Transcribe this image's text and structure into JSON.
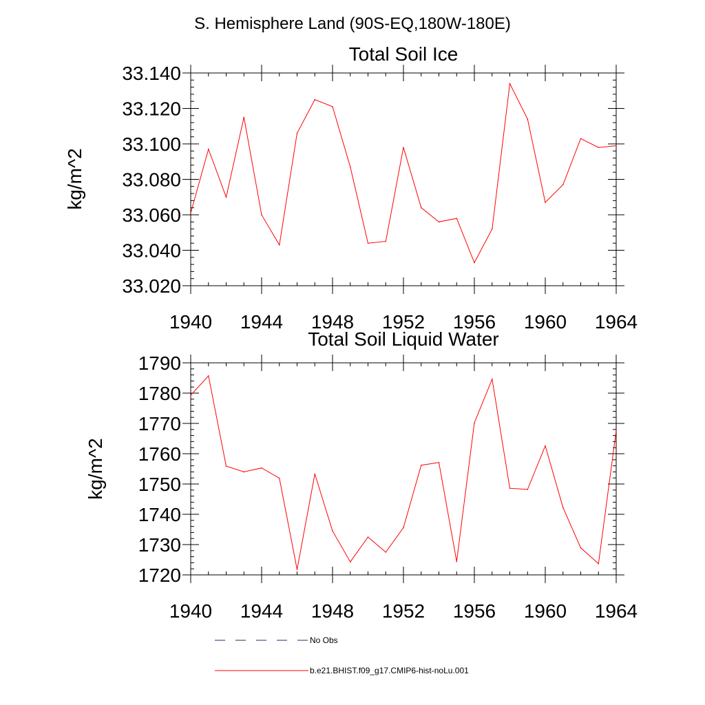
{
  "page": {
    "title": "S. Hemisphere Land (90S-EQ,180W-180E)"
  },
  "legend": {
    "entries": [
      {
        "label": "No Obs",
        "color": "#1f2a6b",
        "dash": "dashed"
      },
      {
        "label": "b.e21.BHIST.f09_g17.CMIP6-hist-noLu.001",
        "color": "#ff0000",
        "dash": "solid"
      }
    ]
  },
  "chart_data": [
    {
      "type": "line",
      "title": "Total Soil Ice",
      "xlabel": "",
      "ylabel": "kg/m^2",
      "xlim": [
        1940,
        1964
      ],
      "ylim": [
        33.02,
        33.14
      ],
      "xticks": [
        1940,
        1944,
        1948,
        1952,
        1956,
        1960,
        1964
      ],
      "yticks": [
        33.02,
        33.04,
        33.06,
        33.08,
        33.1,
        33.12,
        33.14
      ],
      "ytick_decimals": 3,
      "x_minor_step": 1,
      "y_minor_step": 0.004,
      "grid": false,
      "x": [
        1940,
        1941,
        1942,
        1943,
        1944,
        1945,
        1946,
        1947,
        1948,
        1949,
        1950,
        1951,
        1952,
        1953,
        1954,
        1955,
        1956,
        1957,
        1958,
        1959,
        1960,
        1961,
        1962,
        1963,
        1964
      ],
      "series": [
        {
          "name": "b.e21.BHIST.f09_g17.CMIP6-hist-noLu.001",
          "color": "#ff0000",
          "values": [
            33.061,
            33.097,
            33.07,
            33.115,
            33.06,
            33.043,
            33.106,
            33.125,
            33.121,
            33.087,
            33.044,
            33.045,
            33.098,
            33.064,
            33.056,
            33.058,
            33.033,
            33.052,
            33.134,
            33.114,
            33.067,
            33.077,
            33.103,
            33.098,
            33.099
          ]
        }
      ]
    },
    {
      "type": "line",
      "title": "Total Soil Liquid Water",
      "xlabel": "",
      "ylabel": "kg/m^2",
      "xlim": [
        1940,
        1964
      ],
      "ylim": [
        1720,
        1790
      ],
      "xticks": [
        1940,
        1944,
        1948,
        1952,
        1956,
        1960,
        1964
      ],
      "yticks": [
        1720,
        1730,
        1740,
        1750,
        1760,
        1770,
        1780,
        1790
      ],
      "ytick_decimals": 0,
      "x_minor_step": 1,
      "y_minor_step": 2,
      "grid": false,
      "x": [
        1940,
        1941,
        1942,
        1943,
        1944,
        1945,
        1946,
        1947,
        1948,
        1949,
        1950,
        1951,
        1952,
        1953,
        1954,
        1955,
        1956,
        1957,
        1958,
        1959,
        1960,
        1961,
        1962,
        1963,
        1964
      ],
      "series": [
        {
          "name": "b.e21.BHIST.f09_g17.CMIP6-hist-noLu.001",
          "color": "#ff0000",
          "values": [
            1779.3,
            1785.7,
            1755.9,
            1754.0,
            1755.3,
            1751.9,
            1721.8,
            1753.3,
            1734.5,
            1724.3,
            1732.5,
            1727.5,
            1735.6,
            1756.2,
            1757.1,
            1724.4,
            1770.2,
            1784.6,
            1748.6,
            1748.2,
            1762.6,
            1742.2,
            1728.9,
            1723.7,
            1767.6
          ]
        }
      ]
    }
  ]
}
